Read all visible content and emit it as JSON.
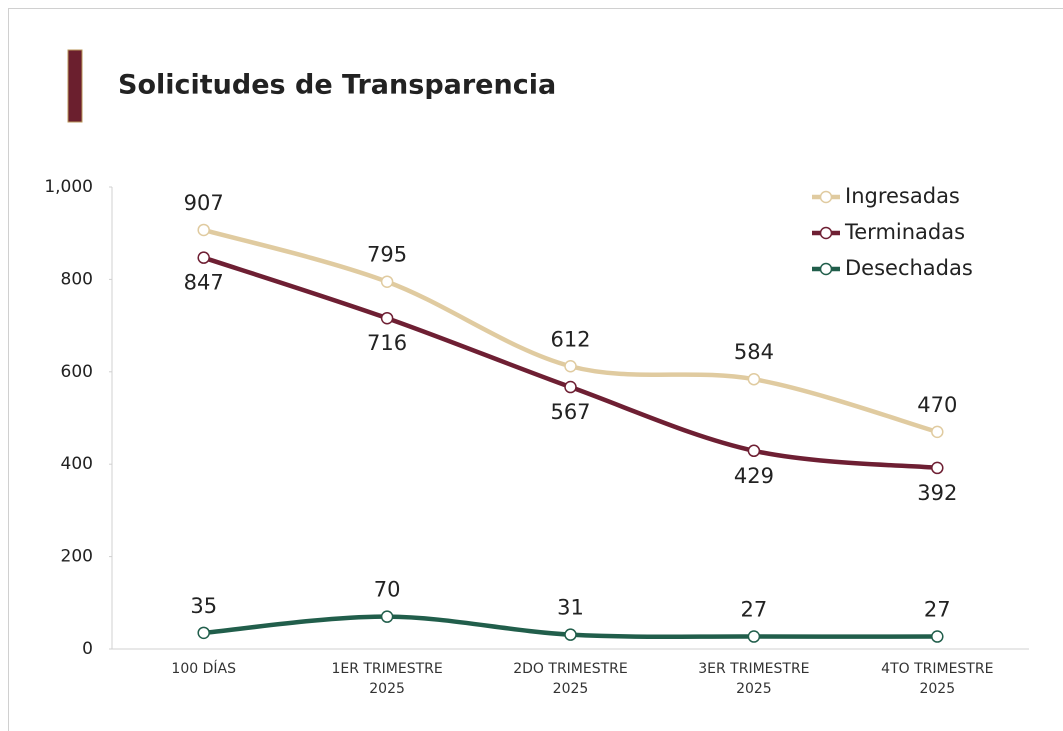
{
  "chart_data": {
    "type": "line",
    "title": "Solicitudes de Transparencia",
    "categories": [
      "100 DÍAS",
      "1ER TRIMESTRE 2025",
      "2DO TRIMESTRE 2025",
      "3ER TRIMESTRE 2025",
      "4TO TRIMESTRE 2025"
    ],
    "series": [
      {
        "name": "Ingresadas",
        "color": "#e0cba0",
        "values": [
          907,
          795,
          612,
          584,
          470
        ]
      },
      {
        "name": "Terminadas",
        "color": "#6e1f33",
        "values": [
          847,
          716,
          567,
          429,
          392
        ]
      },
      {
        "name": "Desechadas",
        "color": "#215e4b",
        "values": [
          35,
          70,
          31,
          27,
          27
        ]
      }
    ],
    "ylim": [
      0,
      1000
    ],
    "yticks": [
      0,
      200,
      400,
      600,
      800,
      {
        "value": 1000,
        "label": "1,000"
      }
    ],
    "legend": "top-right",
    "smooth": true
  }
}
